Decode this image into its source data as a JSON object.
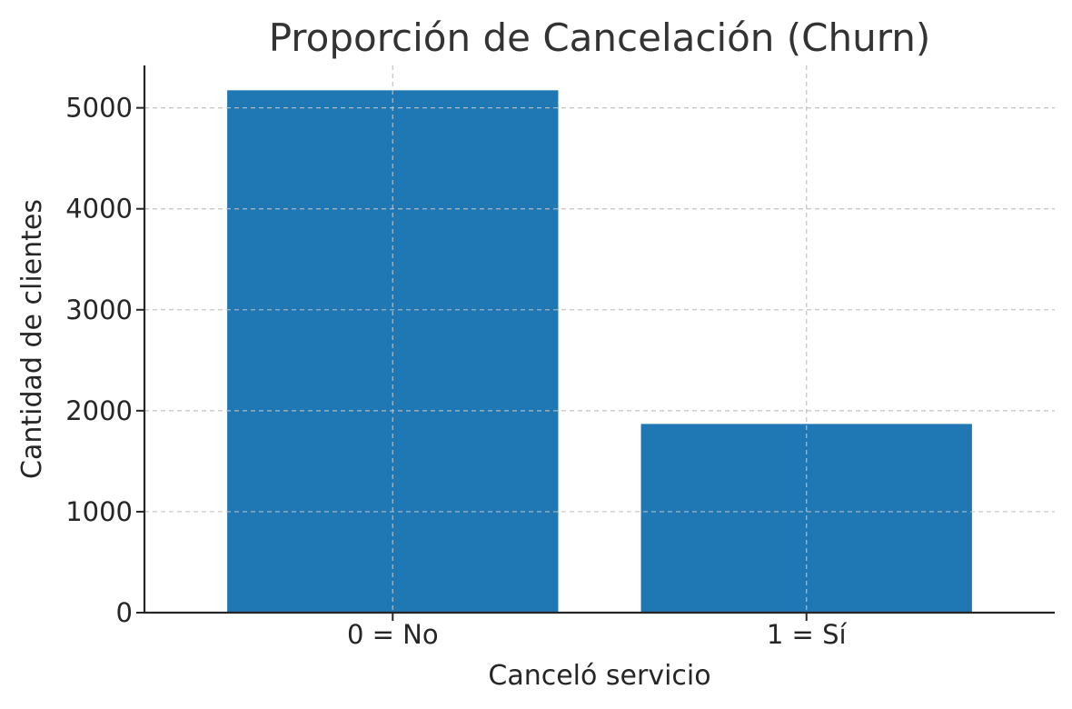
{
  "chart_data": {
    "type": "bar",
    "title": "Proporción de Cancelación (Churn)",
    "xlabel": "Canceló servicio",
    "ylabel": "Cantidad de clientes",
    "categories": [
      "0 = No",
      "1 = Sí"
    ],
    "values": [
      5174,
      1869
    ],
    "ylim": [
      0,
      5420
    ],
    "yticks": [
      0,
      1000,
      2000,
      3000,
      4000,
      5000
    ],
    "ytick_labels": [
      "0",
      "1000",
      "2000",
      "3000",
      "4000",
      "5000"
    ],
    "grid": true,
    "bar_color": "#1f77b4"
  }
}
